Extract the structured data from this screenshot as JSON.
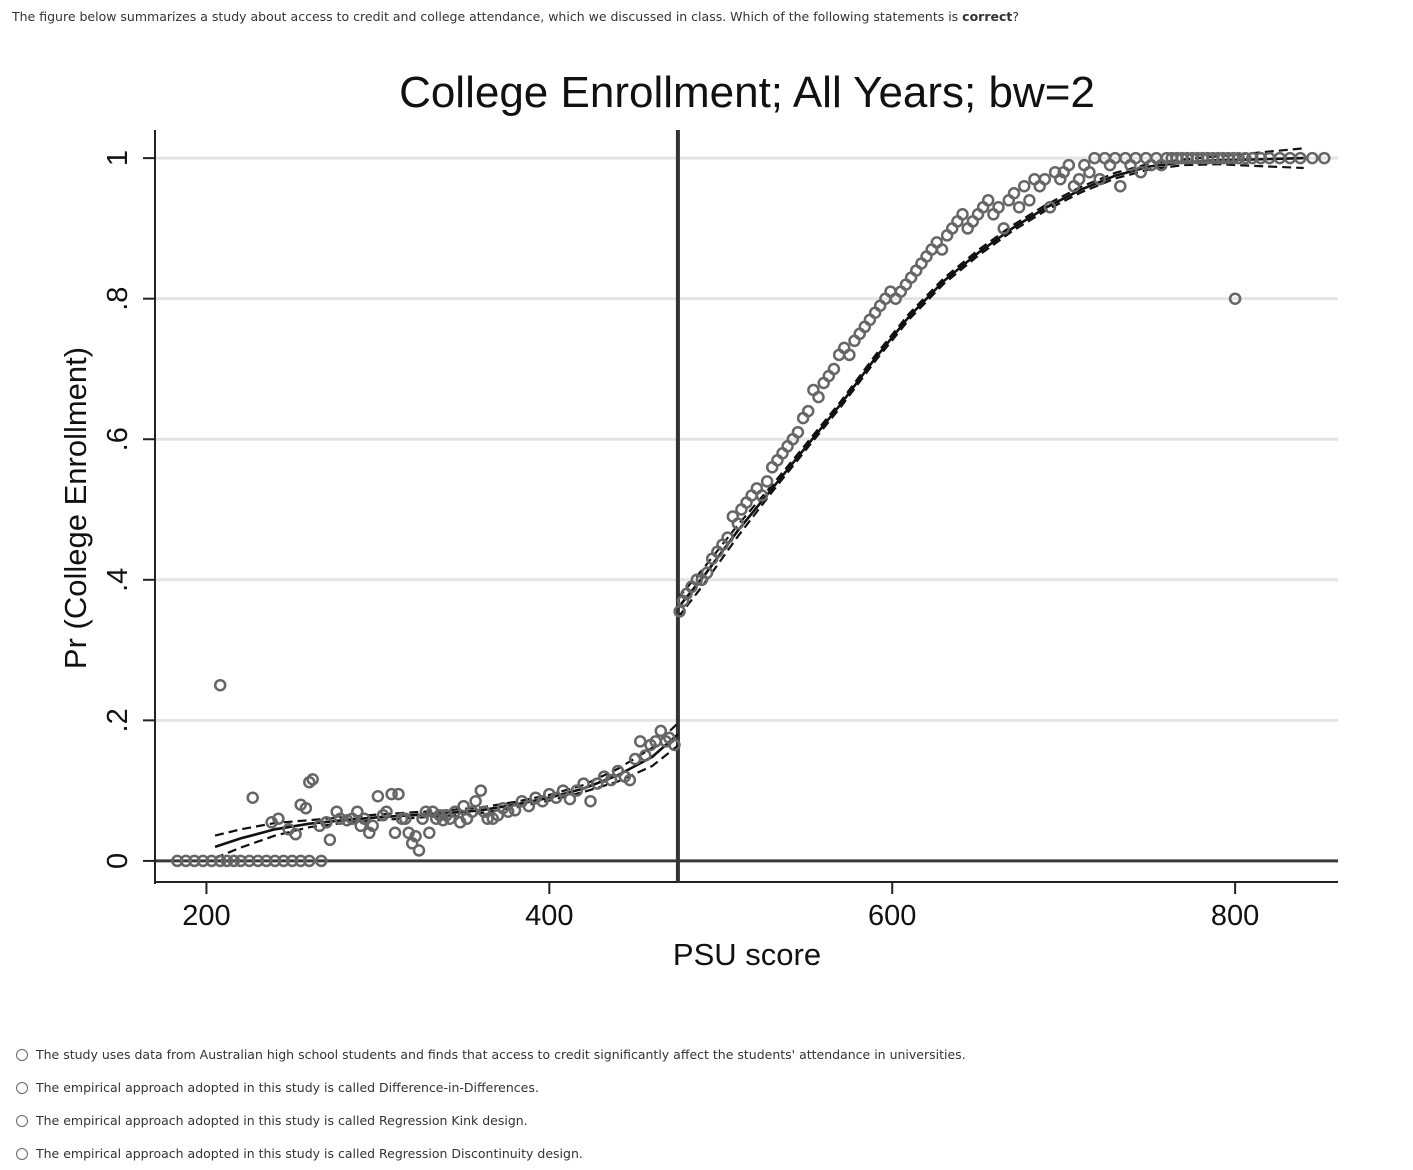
{
  "question": {
    "prefix": "The figure below summarizes a study about access to credit and college attendance, which we discussed in class. Which of the following statements is ",
    "emphasis": "correct",
    "suffix": "?"
  },
  "options": [
    {
      "label": "The study uses data from Australian high school students and finds that access to credit significantly affect the students' attendance in universities."
    },
    {
      "label": "The empirical approach adopted in this study is called Difference-in-Differences."
    },
    {
      "label": "The empirical approach adopted in this study is called Regression Kink design."
    },
    {
      "label": "The empirical approach adopted in this study is called Regression Discontinuity design."
    }
  ],
  "chart_data": {
    "type": "scatter",
    "title": "College Enrollment; All Years; bw=2",
    "xlabel": "PSU score",
    "ylabel": "Pr (College Enrollment)",
    "xlim": [
      170,
      860
    ],
    "ylim": [
      -0.03,
      1.04
    ],
    "x_ticks": [
      200,
      400,
      600,
      800
    ],
    "x_tick_labels": [
      "200",
      "400",
      "600",
      "800"
    ],
    "y_ticks": [
      0,
      0.2,
      0.4,
      0.6,
      0.8,
      1
    ],
    "y_tick_labels": [
      "0",
      ".2",
      ".4",
      ".6",
      ".8",
      "1"
    ],
    "grid": true,
    "cutoff": 475,
    "fit_left": [
      [
        205,
        0.02
      ],
      [
        220,
        0.032
      ],
      [
        240,
        0.045
      ],
      [
        260,
        0.053
      ],
      [
        280,
        0.058
      ],
      [
        300,
        0.062
      ],
      [
        320,
        0.065
      ],
      [
        340,
        0.068
      ],
      [
        360,
        0.072
      ],
      [
        380,
        0.08
      ],
      [
        400,
        0.09
      ],
      [
        420,
        0.103
      ],
      [
        440,
        0.122
      ],
      [
        460,
        0.148
      ],
      [
        475,
        0.18
      ]
    ],
    "fit_right": [
      [
        475,
        0.36
      ],
      [
        490,
        0.405
      ],
      [
        510,
        0.47
      ],
      [
        530,
        0.53
      ],
      [
        550,
        0.59
      ],
      [
        570,
        0.65
      ],
      [
        590,
        0.715
      ],
      [
        610,
        0.775
      ],
      [
        630,
        0.825
      ],
      [
        650,
        0.865
      ],
      [
        670,
        0.9
      ],
      [
        690,
        0.93
      ],
      [
        710,
        0.955
      ],
      [
        730,
        0.975
      ],
      [
        750,
        0.988
      ],
      [
        770,
        0.994
      ],
      [
        790,
        0.997
      ],
      [
        810,
        0.998
      ],
      [
        840,
        1.0
      ]
    ],
    "points": [
      [
        183,
        0
      ],
      [
        188,
        0
      ],
      [
        193,
        0
      ],
      [
        198,
        0
      ],
      [
        203,
        0
      ],
      [
        208,
        0
      ],
      [
        212,
        0
      ],
      [
        216,
        0
      ],
      [
        220,
        0
      ],
      [
        225,
        0
      ],
      [
        230,
        0
      ],
      [
        235,
        0
      ],
      [
        240,
        0
      ],
      [
        245,
        0
      ],
      [
        250,
        0
      ],
      [
        255,
        0
      ],
      [
        260,
        0
      ],
      [
        267,
        0
      ],
      [
        208,
        0.25
      ],
      [
        227,
        0.09
      ],
      [
        238,
        0.055
      ],
      [
        242,
        0.06
      ],
      [
        248,
        0.045
      ],
      [
        252,
        0.038
      ],
      [
        255,
        0.08
      ],
      [
        258,
        0.075
      ],
      [
        260,
        0.112
      ],
      [
        262,
        0.116
      ],
      [
        266,
        0.05
      ],
      [
        270,
        0.055
      ],
      [
        272,
        0.03
      ],
      [
        276,
        0.07
      ],
      [
        278,
        0.06
      ],
      [
        282,
        0.058
      ],
      [
        285,
        0.06
      ],
      [
        288,
        0.07
      ],
      [
        290,
        0.05
      ],
      [
        292,
        0.06
      ],
      [
        295,
        0.04
      ],
      [
        297,
        0.05
      ],
      [
        300,
        0.092
      ],
      [
        303,
        0.065
      ],
      [
        305,
        0.07
      ],
      [
        308,
        0.095
      ],
      [
        310,
        0.04
      ],
      [
        312,
        0.095
      ],
      [
        314,
        0.06
      ],
      [
        316,
        0.06
      ],
      [
        318,
        0.04
      ],
      [
        320,
        0.025
      ],
      [
        322,
        0.035
      ],
      [
        324,
        0.015
      ],
      [
        326,
        0.06
      ],
      [
        328,
        0.07
      ],
      [
        330,
        0.04
      ],
      [
        332,
        0.07
      ],
      [
        334,
        0.06
      ],
      [
        336,
        0.065
      ],
      [
        338,
        0.058
      ],
      [
        340,
        0.065
      ],
      [
        342,
        0.06
      ],
      [
        345,
        0.07
      ],
      [
        348,
        0.055
      ],
      [
        350,
        0.078
      ],
      [
        352,
        0.06
      ],
      [
        355,
        0.07
      ],
      [
        357,
        0.085
      ],
      [
        360,
        0.1
      ],
      [
        362,
        0.07
      ],
      [
        364,
        0.06
      ],
      [
        367,
        0.06
      ],
      [
        370,
        0.065
      ],
      [
        373,
        0.075
      ],
      [
        376,
        0.07
      ],
      [
        380,
        0.072
      ],
      [
        384,
        0.085
      ],
      [
        388,
        0.078
      ],
      [
        392,
        0.09
      ],
      [
        396,
        0.085
      ],
      [
        400,
        0.095
      ],
      [
        404,
        0.09
      ],
      [
        408,
        0.1
      ],
      [
        412,
        0.088
      ],
      [
        416,
        0.1
      ],
      [
        420,
        0.11
      ],
      [
        424,
        0.085
      ],
      [
        428,
        0.11
      ],
      [
        432,
        0.12
      ],
      [
        436,
        0.115
      ],
      [
        440,
        0.128
      ],
      [
        444,
        0.12
      ],
      [
        447,
        0.115
      ],
      [
        450,
        0.145
      ],
      [
        453,
        0.17
      ],
      [
        456,
        0.15
      ],
      [
        459,
        0.165
      ],
      [
        462,
        0.17
      ],
      [
        465,
        0.185
      ],
      [
        468,
        0.17
      ],
      [
        470,
        0.175
      ],
      [
        473,
        0.165
      ],
      [
        476,
        0.355
      ],
      [
        478,
        0.37
      ],
      [
        480,
        0.38
      ],
      [
        483,
        0.39
      ],
      [
        486,
        0.4
      ],
      [
        489,
        0.4
      ],
      [
        492,
        0.41
      ],
      [
        495,
        0.43
      ],
      [
        498,
        0.44
      ],
      [
        501,
        0.45
      ],
      [
        504,
        0.46
      ],
      [
        507,
        0.49
      ],
      [
        510,
        0.48
      ],
      [
        512,
        0.5
      ],
      [
        515,
        0.51
      ],
      [
        518,
        0.52
      ],
      [
        521,
        0.53
      ],
      [
        524,
        0.52
      ],
      [
        527,
        0.54
      ],
      [
        530,
        0.56
      ],
      [
        533,
        0.57
      ],
      [
        536,
        0.58
      ],
      [
        539,
        0.59
      ],
      [
        542,
        0.6
      ],
      [
        545,
        0.61
      ],
      [
        548,
        0.63
      ],
      [
        551,
        0.64
      ],
      [
        554,
        0.67
      ],
      [
        557,
        0.66
      ],
      [
        560,
        0.68
      ],
      [
        563,
        0.69
      ],
      [
        566,
        0.7
      ],
      [
        569,
        0.72
      ],
      [
        572,
        0.73
      ],
      [
        575,
        0.72
      ],
      [
        578,
        0.74
      ],
      [
        581,
        0.75
      ],
      [
        584,
        0.76
      ],
      [
        587,
        0.77
      ],
      [
        590,
        0.78
      ],
      [
        593,
        0.79
      ],
      [
        596,
        0.8
      ],
      [
        599,
        0.81
      ],
      [
        602,
        0.8
      ],
      [
        605,
        0.81
      ],
      [
        608,
        0.82
      ],
      [
        611,
        0.83
      ],
      [
        614,
        0.84
      ],
      [
        617,
        0.85
      ],
      [
        620,
        0.86
      ],
      [
        623,
        0.87
      ],
      [
        626,
        0.88
      ],
      [
        629,
        0.87
      ],
      [
        632,
        0.89
      ],
      [
        635,
        0.9
      ],
      [
        638,
        0.91
      ],
      [
        641,
        0.92
      ],
      [
        644,
        0.9
      ],
      [
        647,
        0.91
      ],
      [
        650,
        0.92
      ],
      [
        653,
        0.93
      ],
      [
        656,
        0.94
      ],
      [
        659,
        0.92
      ],
      [
        662,
        0.93
      ],
      [
        665,
        0.9
      ],
      [
        668,
        0.94
      ],
      [
        671,
        0.95
      ],
      [
        674,
        0.93
      ],
      [
        677,
        0.96
      ],
      [
        680,
        0.94
      ],
      [
        683,
        0.97
      ],
      [
        686,
        0.96
      ],
      [
        689,
        0.97
      ],
      [
        692,
        0.93
      ],
      [
        695,
        0.98
      ],
      [
        698,
        0.97
      ],
      [
        700,
        0.98
      ],
      [
        703,
        0.99
      ],
      [
        706,
        0.96
      ],
      [
        709,
        0.97
      ],
      [
        712,
        0.99
      ],
      [
        715,
        0.98
      ],
      [
        718,
        1.0
      ],
      [
        721,
        0.97
      ],
      [
        724,
        1.0
      ],
      [
        727,
        0.99
      ],
      [
        730,
        1.0
      ],
      [
        733,
        0.96
      ],
      [
        736,
        1.0
      ],
      [
        739,
        0.99
      ],
      [
        742,
        1.0
      ],
      [
        745,
        0.98
      ],
      [
        748,
        1.0
      ],
      [
        751,
        0.99
      ],
      [
        754,
        1.0
      ],
      [
        757,
        0.99
      ],
      [
        760,
        1.0
      ],
      [
        763,
        1.0
      ],
      [
        766,
        1.0
      ],
      [
        769,
        1.0
      ],
      [
        772,
        1.0
      ],
      [
        775,
        1.0
      ],
      [
        778,
        1.0
      ],
      [
        781,
        1.0
      ],
      [
        784,
        1.0
      ],
      [
        787,
        1.0
      ],
      [
        790,
        1.0
      ],
      [
        793,
        1.0
      ],
      [
        796,
        1.0
      ],
      [
        799,
        1.0
      ],
      [
        802,
        1.0
      ],
      [
        806,
        1.0
      ],
      [
        810,
        1.0
      ],
      [
        815,
        1.0
      ],
      [
        820,
        1.0
      ],
      [
        826,
        1.0
      ],
      [
        832,
        1.0
      ],
      [
        838,
        1.0
      ],
      [
        845,
        1.0
      ],
      [
        852,
        1.0
      ],
      [
        800,
        0.8
      ]
    ]
  }
}
